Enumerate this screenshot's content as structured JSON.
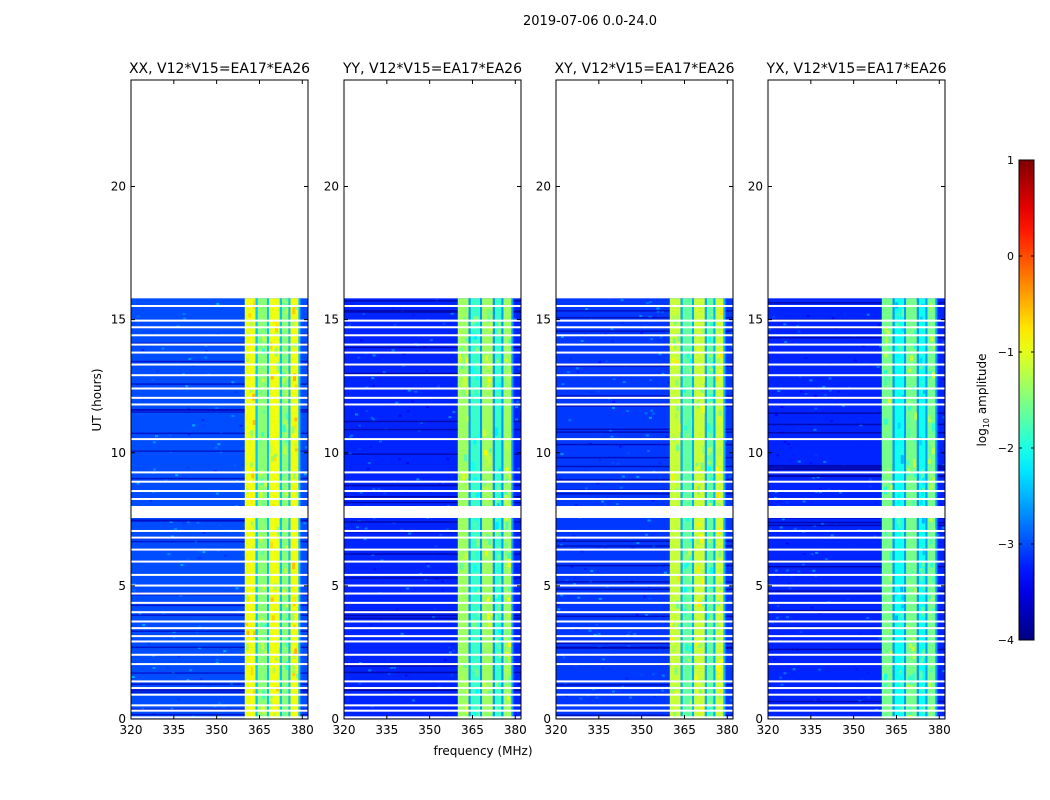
{
  "suptitle": "2019-07-06 0.0-24.0",
  "chart_data": {
    "type": "heatmap",
    "shared": {
      "xlabel": "frequency (MHz)",
      "ylabel": "UT (hours)",
      "xlim": [
        320,
        382
      ],
      "ylim": [
        0,
        24
      ],
      "xticks": [
        320,
        335,
        350,
        365,
        380
      ],
      "yticks": [
        0,
        5,
        10,
        15,
        20
      ],
      "data_time_range_hours": [
        0,
        15.8
      ],
      "flagged_time_gap_hours": [
        7.55,
        8.0
      ],
      "rfi_band_mhz": [
        359.5,
        379
      ],
      "rfi_subband_edges_mhz": [
        359.5,
        364,
        368,
        372.5,
        375.5,
        379
      ]
    },
    "panels": [
      {
        "title": "XX, V12*V15=EA17*EA26",
        "rfi_level": -1.2,
        "background_level": -3.0
      },
      {
        "title": "YY, V12*V15=EA17*EA26",
        "rfi_level": -1.6,
        "background_level": -3.2
      },
      {
        "title": "XY, V12*V15=EA17*EA26",
        "rfi_level": -1.4,
        "background_level": -3.1
      },
      {
        "title": "YX, V12*V15=EA17*EA26",
        "rfi_level": -1.8,
        "background_level": -3.2
      }
    ],
    "colorbar": {
      "label": "log10 amplitude",
      "label_main": "log",
      "label_sub": "10",
      "label_rest": " amplitude",
      "range": [
        -4,
        1
      ],
      "ticks": [
        -4,
        -3,
        -2,
        -1,
        0,
        1
      ],
      "tick_labels": [
        "−4",
        "−3",
        "−2",
        "−1",
        "0",
        "1"
      ],
      "colormap": "jet"
    }
  }
}
